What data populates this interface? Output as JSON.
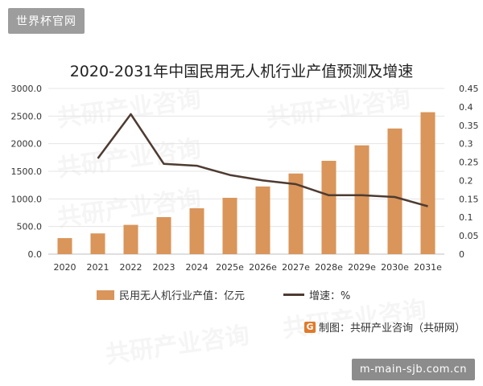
{
  "watermark_top": "世界杯官网",
  "watermark_bottom": "m-main-sjb.com.cn",
  "background_watermark": "共研产业咨询",
  "source": {
    "logo": "G",
    "text": "制图：共研产业咨询（共研网）"
  },
  "colors": {
    "bar": "#d9955a",
    "line": "#4e3b31",
    "grid": "#e4e4e4"
  },
  "chart_data": {
    "type": "bar",
    "title": "2020-2031年中国民用无人机行业产值预测及增速",
    "categories": [
      "2020",
      "2021",
      "2022",
      "2023",
      "2024",
      "2025e",
      "2026e",
      "2027e",
      "2028e",
      "2029e",
      "2030e",
      "2031e"
    ],
    "series": [
      {
        "name": "民用无人机行业产值：亿元",
        "type": "bar",
        "axis": "left",
        "values": [
          290,
          375,
          530,
          670,
          830,
          1020,
          1225,
          1460,
          1690,
          1970,
          2275,
          2570
        ]
      },
      {
        "name": "增速：%",
        "type": "line",
        "axis": "right",
        "values": [
          null,
          0.26,
          0.38,
          0.245,
          0.24,
          0.215,
          0.2,
          0.19,
          0.16,
          0.16,
          0.155,
          0.13
        ]
      }
    ],
    "y_left": {
      "ylim": [
        0,
        3000
      ],
      "ticks": [
        "0.0",
        "500.0",
        "1000.0",
        "1500.0",
        "2000.0",
        "2500.0",
        "3000.0"
      ]
    },
    "y_right": {
      "ylim": [
        0,
        0.45
      ],
      "ticks": [
        "0",
        "0.05",
        "0.1",
        "0.15",
        "0.2",
        "0.25",
        "0.3",
        "0.35",
        "0.4",
        "0.45"
      ]
    },
    "grid": true,
    "legend": "bottom"
  }
}
